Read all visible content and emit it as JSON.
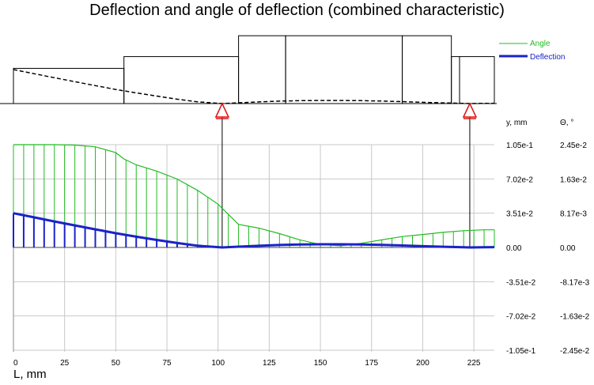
{
  "title": "Deflection and angle of deflection (combined characteristic)",
  "xlabel": "L, mm",
  "colors": {
    "angle": "#22bb22",
    "deflection": "#1a23c9",
    "support": "#e01010",
    "grid": "#c8c8c8"
  },
  "shaft": {
    "sections": [
      {
        "x0": 0,
        "x1": 54,
        "d": 27
      },
      {
        "x0": 54,
        "x1": 110,
        "d": 36
      },
      {
        "x0": 110,
        "x1": 133,
        "d": 52
      },
      {
        "x0": 133,
        "x1": 190,
        "d": 52
      },
      {
        "x0": 190,
        "x1": 214,
        "d": 52
      },
      {
        "x0": 214,
        "x1": 218,
        "d": 36
      },
      {
        "x0": 218,
        "x1": 235,
        "d": 36
      }
    ],
    "supports": [
      102,
      223
    ]
  },
  "chart_data": {
    "type": "line",
    "xlabel": "L, mm",
    "xlim": [
      0,
      235
    ],
    "x_ticks": [
      "0",
      "25",
      "50",
      "75",
      "100",
      "125",
      "150",
      "175",
      "200",
      "225"
    ],
    "y_axis_label": "y, mm",
    "theta_axis_label": "Θ, °",
    "y_ticks": [
      "1.05e-1",
      "7.02e-2",
      "3.51e-2",
      "0.00",
      "-3.51e-2",
      "-7.02e-2",
      "-1.05e-1"
    ],
    "theta_ticks": [
      "2.45e-2",
      "1.63e-2",
      "8.17e-3",
      "0.00",
      "-8.17e-3",
      "-1.63e-2",
      "-2.45e-2"
    ],
    "ylim": [
      -0.105,
      0.105
    ],
    "theta_lim": [
      -0.0245,
      0.0245
    ],
    "legend": {
      "position": "top-right",
      "entries": [
        "Angle",
        "Deflection"
      ]
    },
    "series": [
      {
        "name": "Angle",
        "unit": "deg",
        "x": [
          0,
          10,
          20,
          30,
          40,
          50,
          54,
          60,
          70,
          80,
          90,
          100,
          110,
          120,
          130,
          140,
          150,
          160,
          170,
          180,
          190,
          200,
          210,
          220,
          230,
          235
        ],
        "y": [
          0.0245,
          0.0245,
          0.0245,
          0.0244,
          0.024,
          0.0226,
          0.0211,
          0.0197,
          0.0182,
          0.0163,
          0.0136,
          0.0103,
          0.0055,
          0.0046,
          0.0033,
          0.0018,
          0.0007,
          0.0004,
          0.001,
          0.0018,
          0.0026,
          0.0031,
          0.0036,
          0.004,
          0.0042,
          0.0042
        ]
      },
      {
        "name": "Deflection",
        "unit": "mm",
        "x": [
          0,
          10,
          20,
          30,
          40,
          50,
          60,
          70,
          80,
          90,
          100,
          102,
          110,
          120,
          130,
          140,
          150,
          160,
          170,
          180,
          190,
          200,
          210,
          220,
          223,
          230,
          235
        ],
        "y": [
          0.035,
          0.0308,
          0.0266,
          0.0225,
          0.0185,
          0.0145,
          0.011,
          0.0077,
          0.0045,
          0.0018,
          0.0003,
          0.0,
          0.0008,
          0.0017,
          0.0025,
          0.003,
          0.0032,
          0.0032,
          0.003,
          0.0026,
          0.002,
          0.0013,
          0.0007,
          0.0002,
          0.0,
          0.0002,
          0.0003
        ]
      }
    ]
  }
}
